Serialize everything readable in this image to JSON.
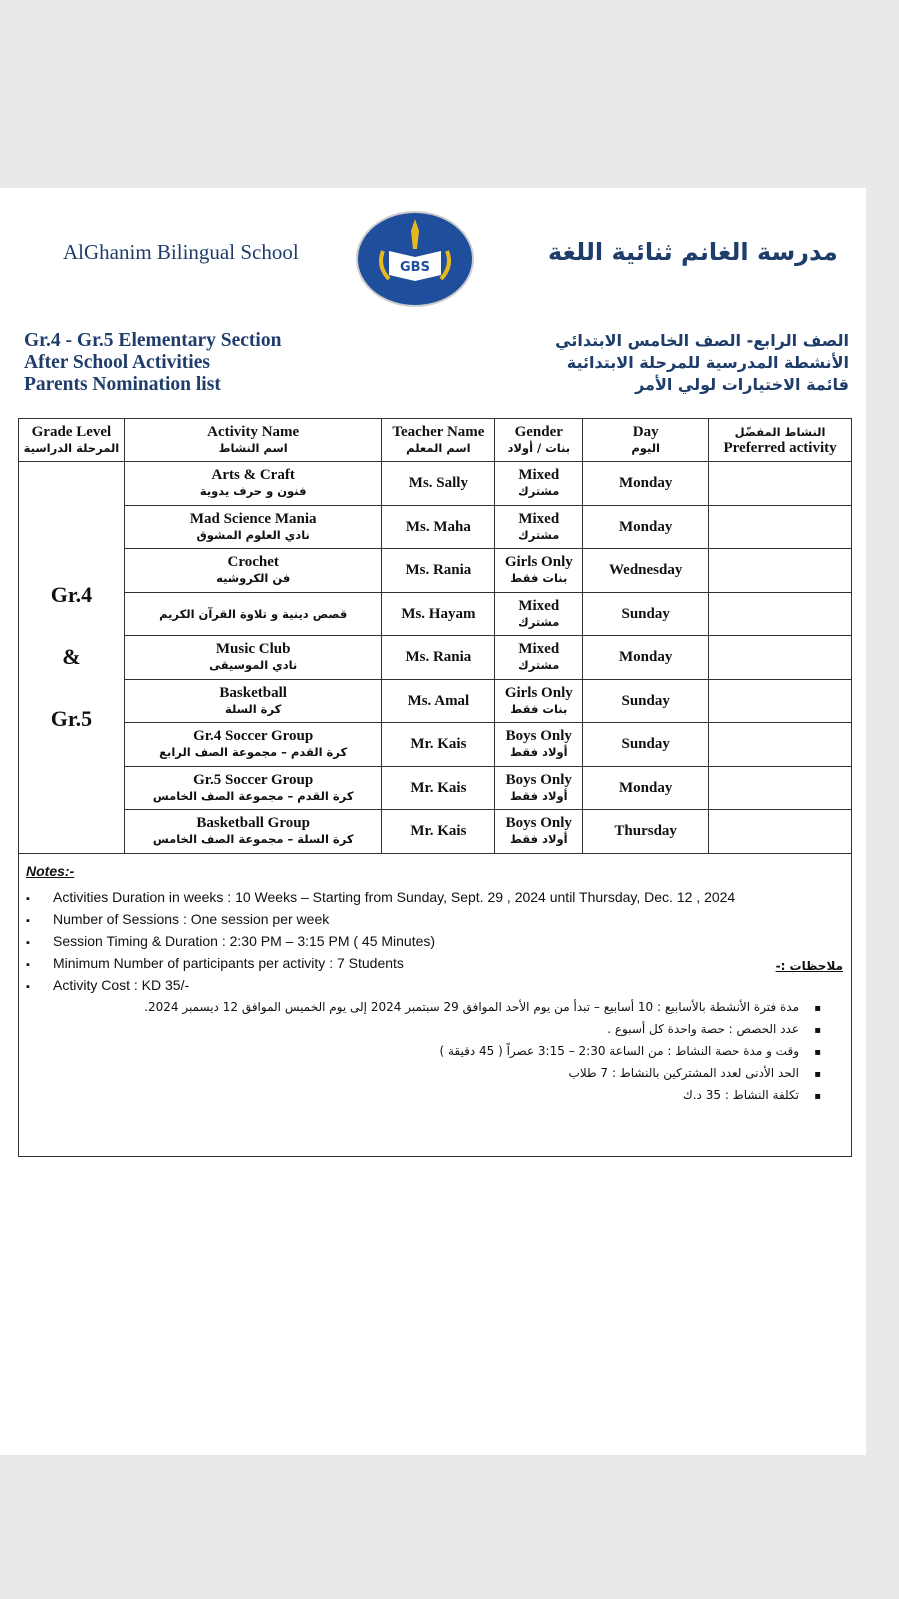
{
  "header": {
    "school_en": "AlGhanim Bilingual School",
    "school_ar": "مدرسة الغانم ثنائية اللغة",
    "logo_text": "GBS",
    "titles_en": [
      "Gr.4 - Gr.5 Elementary Section",
      "After School Activities",
      "Parents Nomination list"
    ],
    "titles_ar": [
      "الصف الرابع- الصف الخامس الابتدائي",
      "الأنشطة المدرسية للمرحلة الابتدائية",
      "قائمة الاختيارات لولي الأمر"
    ]
  },
  "table": {
    "headers": [
      {
        "en": "Grade Level",
        "ar": "المرحلة الدراسية"
      },
      {
        "en": "Activity Name",
        "ar": "اسم النشاط"
      },
      {
        "en": "Teacher Name",
        "ar": "اسم المعلم"
      },
      {
        "en": "Gender",
        "ar": "بنات / أولاد"
      },
      {
        "en": "Day",
        "ar": "اليوم"
      },
      {
        "ar": "النشاط المفضّل",
        "en": "Preferred activity"
      }
    ],
    "grade": {
      "line1": "Gr.4",
      "line2": "&",
      "line3": "Gr.5"
    },
    "rows": [
      {
        "activity_en": "Arts & Craft",
        "activity_ar": "فنون و حرف يدوية",
        "teacher": "Ms. Sally",
        "gender_en": "Mixed",
        "gender_ar": "مشترك",
        "day": "Monday"
      },
      {
        "activity_en": "Mad Science Mania",
        "activity_ar": "نادي العلوم المشوق",
        "teacher": "Ms. Maha",
        "gender_en": "Mixed",
        "gender_ar": "مشترك",
        "day": "Monday"
      },
      {
        "activity_en": "Crochet",
        "activity_ar": "فن الكروشيه",
        "teacher": "Ms. Rania",
        "gender_en": "Girls Only",
        "gender_ar": "بنات فقط",
        "day": "Wednesday"
      },
      {
        "activity_en": "",
        "activity_ar": "قصص دينية و تلاوة القرآن الكريم",
        "teacher": "Ms. Hayam",
        "gender_en": "Mixed",
        "gender_ar": "مشترك",
        "day": "Sunday"
      },
      {
        "activity_en": "Music Club",
        "activity_ar": "نادي الموسيقى",
        "teacher": "Ms. Rania",
        "gender_en": "Mixed",
        "gender_ar": "مشترك",
        "day": "Monday"
      },
      {
        "activity_en": "Basketball",
        "activity_ar": "كرة السلة",
        "teacher": "Ms. Amal",
        "gender_en": "Girls Only",
        "gender_ar": "بنات فقط",
        "day": "Sunday"
      },
      {
        "activity_en": "Gr.4 Soccer Group",
        "activity_ar": "كرة القدم – مجموعة الصف الرابع",
        "teacher": "Mr. Kais",
        "gender_en": "Boys Only",
        "gender_ar": "أولاد فقط",
        "day": "Sunday"
      },
      {
        "activity_en": "Gr.5 Soccer Group",
        "activity_ar": "كرة القدم – مجموعة الصف الخامس",
        "teacher": "Mr. Kais",
        "gender_en": "Boys Only",
        "gender_ar": "أولاد فقط",
        "day": "Monday"
      },
      {
        "activity_en": "Basketball Group",
        "activity_ar": "كرة السلة – مجموعة الصف الخامس",
        "teacher": "Mr. Kais",
        "gender_en": "Boys Only",
        "gender_ar": "أولاد فقط",
        "day": "Thursday"
      }
    ]
  },
  "notes": {
    "title_en": "Notes:-",
    "items_en": [
      "Activities Duration in weeks : 10 Weeks – Starting from Sunday, Sept. 29 , 2024 until Thursday, Dec. 12 , 2024",
      "Number of Sessions : One session per week",
      "Session Timing & Duration : 2:30 PM – 3:15 PM ( 45 Minutes)",
      "Minimum Number of participants per activity : 7 Students",
      "Activity Cost : KD 35/-"
    ],
    "title_ar": "ملاحظات :-",
    "items_ar": [
      "مدة فترة الأنشطة بالأسابيع : 10 أسابيع – تبدأ من يوم الأحد الموافق 29 سبتمبر 2024 إلى يوم الخميس الموافق 12 ديسمبر 2024.",
      "عدد الحصص : حصة واحدة كل أسبوع .",
      "وقت و مدة حصة النشاط : من الساعة 2:30 – 3:15 عصراً ( 45 دقيقة )",
      "الحد الأدنى لعدد المشتركين بالنشاط : 7 طلاب",
      "تكلفة النشاط : 35 د.ك"
    ]
  },
  "colors": {
    "brand": "#1f3d6b",
    "logo_blue": "#1f4f9c",
    "logo_gold": "#e8b820"
  }
}
